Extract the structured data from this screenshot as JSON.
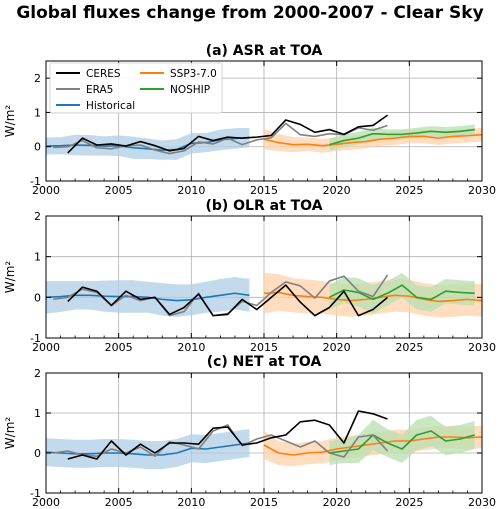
{
  "figure_title": "Global fluxes change from 2000-2007 - Clear Sky",
  "legend": [
    {
      "name": "CERES",
      "color": "#000000"
    },
    {
      "name": "ERA5",
      "color": "#808080"
    },
    {
      "name": "Historical",
      "color": "#1f77b4"
    },
    {
      "name": "SSP3-7.0",
      "color": "#ff7f0e"
    },
    {
      "name": "NOSHIP",
      "color": "#2ca02c"
    }
  ],
  "colors": {
    "CERES": "#000000",
    "ERA5": "#808080",
    "Historical": "#1f77b4",
    "SSP3-7.0": "#ff7f0e",
    "NOSHIP": "#2ca02c",
    "Historical_band": "#aecde6",
    "SSP3-7.0_band": "#ffd1a8",
    "NOSHIP_band": "#b8dfb0"
  },
  "chart_data": [
    {
      "type": "line",
      "title": "(a)  ASR at TOA",
      "ylabel": "W/m²",
      "xlim": [
        2000,
        2030
      ],
      "ylim": [
        -1,
        2.5
      ],
      "xticks": [
        2000,
        2005,
        2010,
        2015,
        2020,
        2025,
        2030
      ],
      "yticks": [
        -1,
        0,
        1,
        2
      ],
      "grid": true,
      "legend_position": "top-left",
      "series": [
        {
          "name": "CERES",
          "x": [
            2001.5,
            2002.5,
            2003.5,
            2004.5,
            2005.5,
            2006.5,
            2007.5,
            2008.5,
            2009.5,
            2010.5,
            2011.5,
            2012.5,
            2013.5,
            2014.5,
            2015.5,
            2016.5,
            2017.5,
            2018.5,
            2019.5,
            2020.5,
            2021.5,
            2022.5,
            2023.5
          ],
          "y": [
            -0.18,
            0.25,
            0.05,
            0.08,
            0.02,
            0.15,
            0.03,
            -0.12,
            -0.05,
            0.3,
            0.18,
            0.28,
            0.25,
            0.28,
            0.33,
            0.78,
            0.65,
            0.42,
            0.5,
            0.36,
            0.58,
            0.62,
            0.92
          ]
        },
        {
          "name": "ERA5",
          "x": [
            2000.5,
            2001.5,
            2002.5,
            2003.5,
            2004.5,
            2005.5,
            2006.5,
            2007.5,
            2008.5,
            2009.5,
            2010.5,
            2011.5,
            2012.5,
            2013.5,
            2014.5,
            2015.5,
            2016.5,
            2017.5,
            2018.5,
            2019.5,
            2020.5,
            2021.5,
            2022.5,
            2023.5
          ],
          "y": [
            -0.02,
            0.0,
            0.18,
            -0.03,
            -0.06,
            0.03,
            0.05,
            -0.1,
            -0.2,
            -0.12,
            0.14,
            0.08,
            0.25,
            0.06,
            0.2,
            0.26,
            0.68,
            0.35,
            0.3,
            0.38,
            0.35,
            0.55,
            0.48,
            0.62
          ]
        },
        {
          "name": "Historical",
          "x": [
            2000,
            2001,
            2002,
            2003,
            2004,
            2005,
            2006,
            2007,
            2008,
            2009,
            2010,
            2011,
            2012,
            2013,
            2014
          ],
          "y": [
            0.02,
            0.03,
            0.05,
            0.04,
            0.02,
            0.03,
            -0.03,
            -0.06,
            -0.1,
            -0.08,
            0.1,
            0.12,
            0.2,
            0.24,
            0.27
          ],
          "band": [
            0.25,
            0.25,
            0.3,
            0.3,
            0.28,
            0.3,
            0.32,
            0.3,
            0.28,
            0.3,
            0.3,
            0.28,
            0.3,
            0.3,
            0.28
          ]
        },
        {
          "name": "SSP3-7.0",
          "x": [
            2015,
            2016,
            2017,
            2018,
            2019,
            2020,
            2021,
            2022,
            2023,
            2024,
            2025,
            2026,
            2027,
            2028,
            2029,
            2030
          ],
          "y": [
            0.22,
            0.12,
            0.06,
            0.07,
            0.03,
            0.07,
            0.12,
            0.15,
            0.22,
            0.25,
            0.3,
            0.3,
            0.25,
            0.3,
            0.32,
            0.35
          ],
          "band": [
            0.3,
            0.25,
            0.22,
            0.2,
            0.2,
            0.2,
            0.2,
            0.2,
            0.2,
            0.2,
            0.2,
            0.2,
            0.2,
            0.2,
            0.2,
            0.2
          ]
        },
        {
          "name": "NOSHIP",
          "x": [
            2019.5,
            2020.5,
            2021.5,
            2022.5,
            2023.5,
            2024.5,
            2025.5,
            2026.5,
            2027.5,
            2028.5,
            2029.5
          ],
          "y": [
            0.06,
            0.18,
            0.25,
            0.38,
            0.36,
            0.36,
            0.4,
            0.45,
            0.42,
            0.45,
            0.5
          ],
          "band": [
            0.18,
            0.18,
            0.18,
            0.18,
            0.15,
            0.15,
            0.15,
            0.15,
            0.15,
            0.15,
            0.15
          ]
        }
      ]
    },
    {
      "type": "line",
      "title": "(b)  OLR at TOA",
      "ylabel": "W/m²",
      "xlim": [
        2000,
        2030
      ],
      "ylim": [
        -1,
        2
      ],
      "xticks": [
        2000,
        2005,
        2010,
        2015,
        2020,
        2025,
        2030
      ],
      "yticks": [
        -1,
        0,
        1,
        2
      ],
      "grid": true,
      "series": [
        {
          "name": "CERES",
          "x": [
            2001.5,
            2002.5,
            2003.5,
            2004.5,
            2005.5,
            2006.5,
            2007.5,
            2008.5,
            2009.5,
            2010.5,
            2011.5,
            2012.5,
            2013.5,
            2014.5,
            2015.5,
            2016.5,
            2017.5,
            2018.5,
            2019.5,
            2020.5,
            2021.5,
            2022.5,
            2023.5
          ],
          "y": [
            -0.1,
            0.25,
            0.15,
            -0.2,
            0.15,
            -0.05,
            0.0,
            -0.42,
            -0.25,
            0.08,
            -0.45,
            -0.42,
            -0.05,
            -0.3,
            0.0,
            0.3,
            -0.12,
            -0.45,
            -0.25,
            0.15,
            -0.45,
            -0.3,
            0.0
          ]
        },
        {
          "name": "ERA5",
          "x": [
            2000.5,
            2001.5,
            2002.5,
            2003.5,
            2004.5,
            2005.5,
            2006.5,
            2007.5,
            2008.5,
            2009.5,
            2010.5,
            2011.5,
            2012.5,
            2013.5,
            2014.5,
            2015.5,
            2016.5,
            2017.5,
            2018.5,
            2019.5,
            2020.5,
            2021.5,
            2022.5,
            2023.5
          ],
          "y": [
            -0.05,
            0.0,
            0.2,
            0.12,
            -0.2,
            0.05,
            -0.08,
            0.0,
            -0.45,
            -0.35,
            0.1,
            -0.45,
            -0.4,
            -0.1,
            -0.2,
            0.12,
            0.38,
            0.28,
            -0.02,
            0.4,
            0.52,
            0.15,
            0.02,
            0.55
          ]
        },
        {
          "name": "Historical",
          "x": [
            2000,
            2001,
            2002,
            2003,
            2004,
            2005,
            2006,
            2007,
            2008,
            2009,
            2010,
            2011,
            2012,
            2013,
            2014
          ],
          "y": [
            0.0,
            0.02,
            0.05,
            0.05,
            0.03,
            0.02,
            0.02,
            0.0,
            -0.05,
            -0.08,
            -0.06,
            0.0,
            0.05,
            0.1,
            0.05
          ],
          "band": [
            0.4,
            0.38,
            0.35,
            0.35,
            0.38,
            0.4,
            0.4,
            0.38,
            0.4,
            0.4,
            0.38,
            0.38,
            0.4,
            0.4,
            0.4
          ]
        },
        {
          "name": "SSP3-7.0",
          "x": [
            2015,
            2016,
            2017,
            2018,
            2019,
            2020,
            2021,
            2022,
            2023,
            2024,
            2025,
            2026,
            2027,
            2028,
            2029,
            2030
          ],
          "y": [
            0.1,
            0.12,
            0.05,
            0.02,
            0.0,
            -0.05,
            -0.08,
            -0.05,
            0.0,
            0.05,
            0.03,
            -0.05,
            -0.1,
            -0.08,
            -0.05,
            -0.08
          ],
          "band": [
            0.5,
            0.45,
            0.42,
            0.42,
            0.4,
            0.4,
            0.4,
            0.4,
            0.4,
            0.4,
            0.4,
            0.4,
            0.4,
            0.4,
            0.4,
            0.4
          ]
        },
        {
          "name": "NOSHIP",
          "x": [
            2019.5,
            2020.5,
            2021.5,
            2022.5,
            2023.5,
            2024.5,
            2025.5,
            2026.5,
            2027.5,
            2028.5,
            2029.5
          ],
          "y": [
            0.0,
            0.18,
            0.12,
            -0.05,
            0.1,
            0.3,
            0.0,
            -0.05,
            0.15,
            0.12,
            0.1
          ],
          "band": [
            0.3,
            0.32,
            0.35,
            0.35,
            0.3,
            0.3,
            0.3,
            0.3,
            0.3,
            0.3,
            0.3
          ]
        }
      ]
    },
    {
      "type": "line",
      "title": "(c)  NET at TOA",
      "ylabel": "W/m²",
      "xlim": [
        2000,
        2030
      ],
      "ylim": [
        -1,
        2
      ],
      "xticks": [
        2000,
        2005,
        2010,
        2015,
        2020,
        2025,
        2030
      ],
      "yticks": [
        -1,
        0,
        1,
        2
      ],
      "grid": true,
      "series": [
        {
          "name": "CERES",
          "x": [
            2001.5,
            2002.5,
            2003.5,
            2004.5,
            2005.5,
            2006.5,
            2007.5,
            2008.5,
            2009.5,
            2010.5,
            2011.5,
            2012.5,
            2013.5,
            2014.5,
            2015.5,
            2016.5,
            2017.5,
            2018.5,
            2019.5,
            2020.5,
            2021.5,
            2022.5,
            2023.5
          ],
          "y": [
            -0.15,
            -0.05,
            -0.15,
            0.3,
            -0.05,
            0.22,
            0.0,
            0.25,
            0.25,
            0.22,
            0.62,
            0.65,
            0.2,
            0.25,
            0.38,
            0.45,
            0.78,
            0.82,
            0.7,
            0.25,
            1.05,
            0.98,
            0.85
          ]
        },
        {
          "name": "ERA5",
          "x": [
            2000.5,
            2001.5,
            2002.5,
            2003.5,
            2004.5,
            2005.5,
            2006.5,
            2007.5,
            2008.5,
            2009.5,
            2010.5,
            2011.5,
            2012.5,
            2013.5,
            2014.5,
            2015.5,
            2016.5,
            2017.5,
            2018.5,
            2019.5,
            2020.5,
            2021.5,
            2022.5,
            2023.5
          ],
          "y": [
            0.0,
            0.05,
            -0.05,
            -0.08,
            0.1,
            0.0,
            0.15,
            -0.08,
            0.28,
            0.2,
            0.1,
            0.55,
            0.7,
            0.18,
            0.35,
            0.45,
            0.3,
            0.15,
            0.3,
            0.0,
            -0.1,
            0.4,
            0.45,
            0.05
          ]
        },
        {
          "name": "Historical",
          "x": [
            2000,
            2001,
            2002,
            2003,
            2004,
            2005,
            2006,
            2007,
            2008,
            2009,
            2010,
            2011,
            2012,
            2013,
            2014
          ],
          "y": [
            0.02,
            0.0,
            -0.02,
            -0.02,
            0.0,
            0.0,
            -0.02,
            -0.05,
            -0.05,
            0.0,
            0.12,
            0.1,
            0.15,
            0.2,
            0.25
          ],
          "band": [
            0.35,
            0.35,
            0.35,
            0.35,
            0.35,
            0.35,
            0.35,
            0.35,
            0.35,
            0.35,
            0.35,
            0.35,
            0.35,
            0.35,
            0.35
          ]
        },
        {
          "name": "SSP3-7.0",
          "x": [
            2015,
            2016,
            2017,
            2018,
            2019,
            2020,
            2021,
            2022,
            2023,
            2024,
            2025,
            2026,
            2027,
            2028,
            2029,
            2030
          ],
          "y": [
            0.2,
            0.0,
            -0.05,
            0.0,
            0.02,
            0.1,
            0.15,
            0.2,
            0.25,
            0.3,
            0.3,
            0.35,
            0.4,
            0.4,
            0.38,
            0.4
          ],
          "band": [
            0.35,
            0.3,
            0.28,
            0.28,
            0.28,
            0.28,
            0.28,
            0.28,
            0.28,
            0.28,
            0.28,
            0.28,
            0.28,
            0.28,
            0.28,
            0.28
          ]
        },
        {
          "name": "NOSHIP",
          "x": [
            2019.5,
            2020.5,
            2021.5,
            2022.5,
            2023.5,
            2024.5,
            2025.5,
            2026.5,
            2027.5,
            2028.5,
            2029.5
          ],
          "y": [
            0.0,
            0.05,
            0.1,
            0.45,
            0.25,
            0.1,
            0.45,
            0.55,
            0.3,
            0.35,
            0.45
          ],
          "band": [
            0.3,
            0.3,
            0.35,
            0.38,
            0.35,
            0.35,
            0.38,
            0.38,
            0.35,
            0.35,
            0.35
          ]
        }
      ]
    }
  ]
}
